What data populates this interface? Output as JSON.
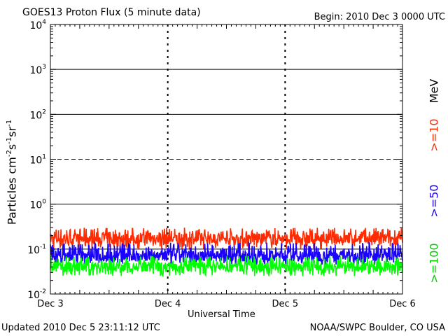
{
  "title": "GOES13 Proton Flux (5 minute data)",
  "begin": "Begin: 2010 Dec 3 0000 UTC",
  "updated": "Updated 2010 Dec  5 23:11:12 UTC",
  "credit": "NOAA/SWPC Boulder, CO USA",
  "colors": {
    "ge10": "#ff2a00",
    "ge50": "#1a00ff",
    "ge100": "#00ff00",
    "axis": "#000000"
  },
  "legend": {
    "unit": "MeV",
    "ge10": ">=10",
    "ge50": ">=50",
    "ge100": ">=100"
  },
  "chart_data": {
    "type": "line",
    "title": "GOES13 Proton Flux (5 minute data)",
    "xlabel": "Universal Time",
    "ylabel": "Particles cm-2s-1sr-1",
    "yscale": "log",
    "ylim": [
      0.01,
      10000
    ],
    "xlim": [
      "2010-12-03 00:00",
      "2010-12-06 00:00"
    ],
    "x_ticks": [
      "Dec 3",
      "Dec 4",
      "Dec 5",
      "Dec 6"
    ],
    "y_ticks": [
      {
        "base": "10",
        "exp": "-2",
        "value": 0.01
      },
      {
        "base": "10",
        "exp": "-1",
        "value": 0.1
      },
      {
        "base": "10",
        "exp": "0",
        "value": 1
      },
      {
        "base": "10",
        "exp": "1",
        "value": 10
      },
      {
        "base": "10",
        "exp": "2",
        "value": 100
      },
      {
        "base": "10",
        "exp": "3",
        "value": 1000
      },
      {
        "base": "10",
        "exp": "4",
        "value": 10000
      }
    ],
    "threshold_lines": [
      {
        "value": 0.1,
        "style": "solid"
      },
      {
        "value": 1,
        "style": "solid"
      },
      {
        "value": 10,
        "style": "dashed"
      },
      {
        "value": 100,
        "style": "solid"
      },
      {
        "value": 1000,
        "style": "solid"
      }
    ],
    "grid": "dashed vertical day separators",
    "series": [
      {
        "name": ">=10 MeV",
        "color": "#ff2a00",
        "typical": 0.17,
        "min": 0.1,
        "max": 0.3
      },
      {
        "name": ">=50 MeV",
        "color": "#1a00ff",
        "typical": 0.07,
        "min": 0.045,
        "max": 0.14
      },
      {
        "name": ">=100 MeV",
        "color": "#00ff00",
        "typical": 0.04,
        "min": 0.025,
        "max": 0.07
      }
    ]
  }
}
